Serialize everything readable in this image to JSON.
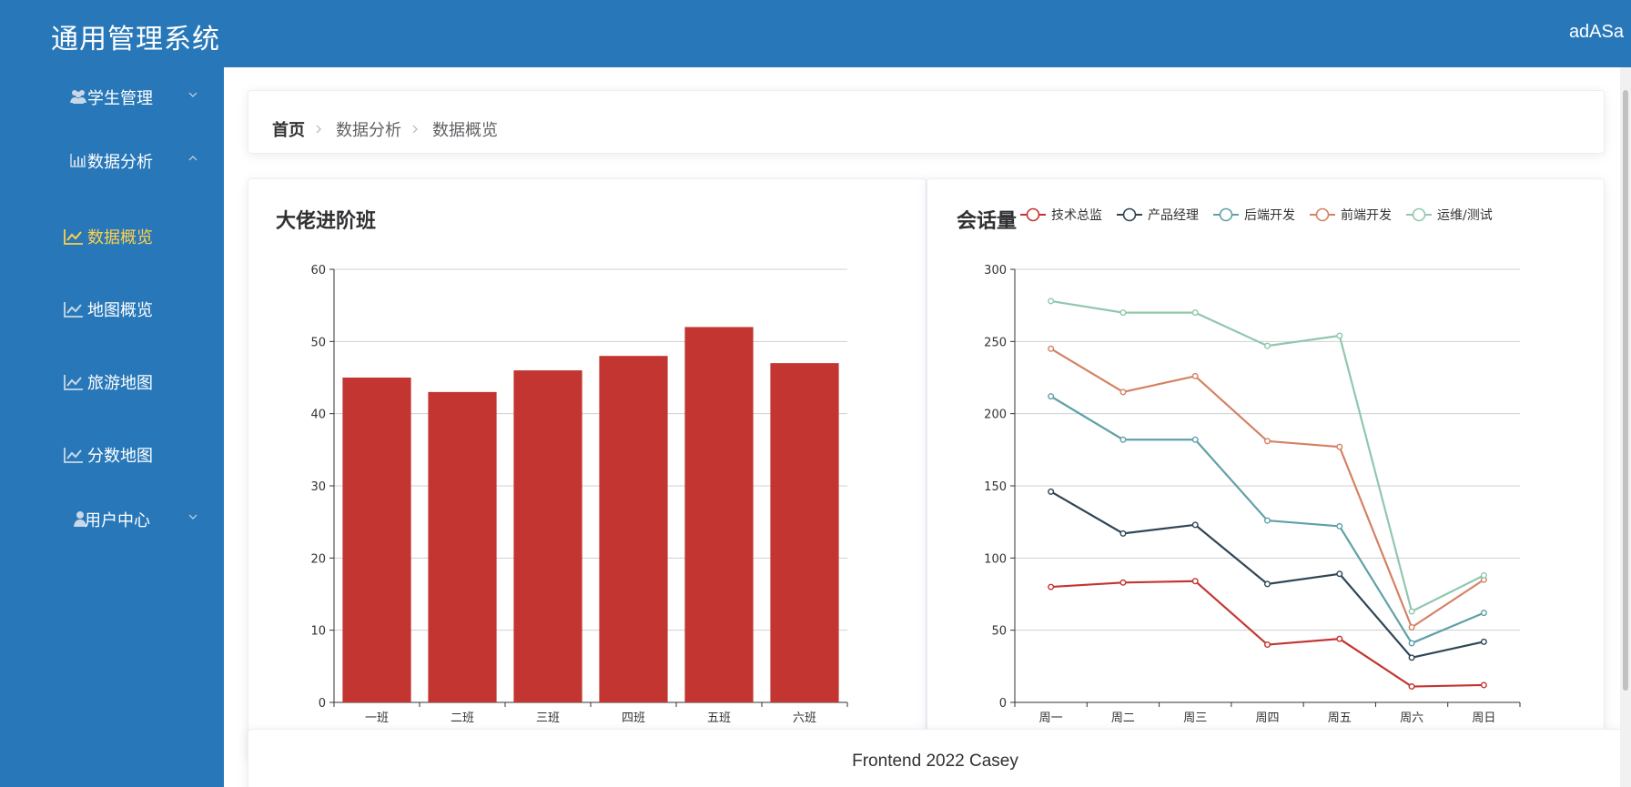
{
  "app": {
    "title": "通用管理系统",
    "user": "adASa"
  },
  "sidebar": {
    "groups": [
      {
        "label": "学生管理",
        "icon": "users-icon",
        "expanded": false
      },
      {
        "label": "数据分析",
        "icon": "bar-chart-icon",
        "expanded": true
      },
      {
        "label": "用户中心",
        "icon": "user-icon",
        "expanded": false
      }
    ],
    "items": [
      {
        "label": "数据概览",
        "icon": "line-chart-icon",
        "active": true
      },
      {
        "label": "地图概览",
        "icon": "line-chart-icon",
        "active": false
      },
      {
        "label": "旅游地图",
        "icon": "line-chart-icon",
        "active": false
      },
      {
        "label": "分数地图",
        "icon": "line-chart-icon",
        "active": false
      }
    ]
  },
  "breadcrumb": [
    "首页",
    "数据分析",
    "数据概览"
  ],
  "footer": {
    "text": "Frontend 2022 Casey"
  },
  "colors": {
    "brand": "#2878b9",
    "active_menu": "#ffd04b",
    "bar": "#c23531"
  },
  "chart_data": [
    {
      "type": "bar",
      "title": "大佬进阶班",
      "categories": [
        "一班",
        "二班",
        "三班",
        "四班",
        "五班",
        "六班"
      ],
      "values": [
        45,
        43,
        46,
        48,
        52,
        47
      ],
      "ylim": [
        0,
        60
      ],
      "yticks": [
        0,
        10,
        20,
        30,
        40,
        50,
        60
      ],
      "grid": true,
      "color": "#c23531"
    },
    {
      "type": "line",
      "title": "会话量",
      "categories": [
        "周一",
        "周二",
        "周三",
        "周四",
        "周五",
        "周六",
        "周日"
      ],
      "ylim": [
        0,
        300
      ],
      "yticks": [
        0,
        50,
        100,
        150,
        200,
        250,
        300
      ],
      "grid": true,
      "legend": "top",
      "series": [
        {
          "name": "技术总监",
          "color": "#c23531",
          "values": [
            80,
            83,
            84,
            40,
            44,
            11,
            12
          ]
        },
        {
          "name": "产品经理",
          "color": "#2f4554",
          "values": [
            146,
            117,
            123,
            82,
            89,
            31,
            42
          ]
        },
        {
          "name": "后端开发",
          "color": "#61a0a8",
          "values": [
            212,
            182,
            182,
            126,
            122,
            41,
            62
          ]
        },
        {
          "name": "前端开发",
          "color": "#d48265",
          "values": [
            245,
            215,
            226,
            181,
            177,
            52,
            85
          ]
        },
        {
          "name": "运维/测试",
          "color": "#91c7ae",
          "values": [
            278,
            270,
            270,
            247,
            254,
            63,
            88
          ]
        }
      ]
    }
  ]
}
